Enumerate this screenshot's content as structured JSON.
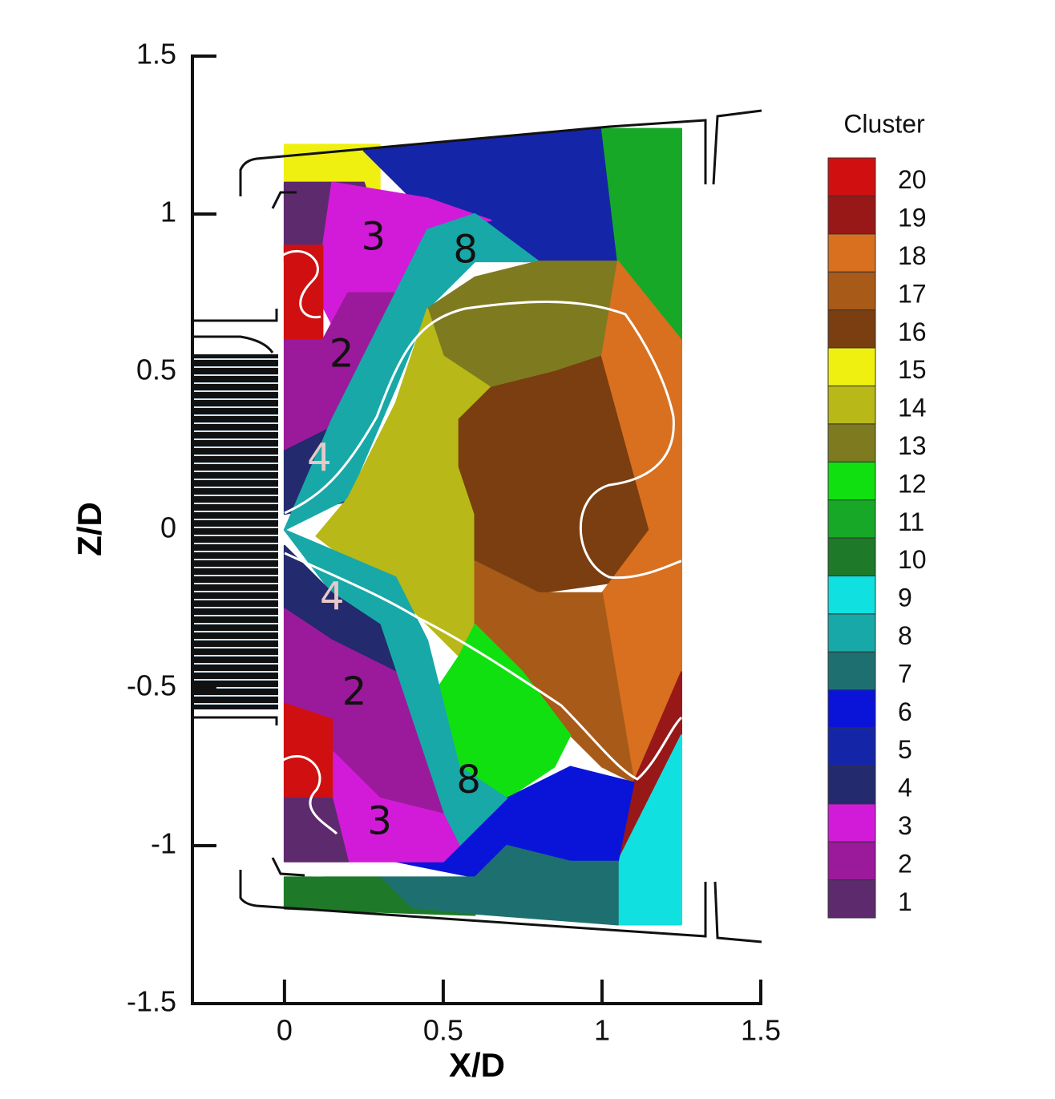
{
  "chart_data": {
    "type": "contour",
    "xlabel": "X/D",
    "ylabel": "Z/D",
    "xlim": [
      -0.29,
      1.5
    ],
    "ylim": [
      -1.5,
      1.5
    ],
    "xticks": [
      0,
      0.5,
      1,
      1.5
    ],
    "yticks": [
      -1.5,
      -1,
      -0.5,
      0,
      0.5,
      1,
      1.5
    ],
    "legend_title": "Cluster",
    "levels": [
      1,
      2,
      3,
      4,
      5,
      6,
      7,
      8,
      9,
      10,
      11,
      12,
      13,
      14,
      15,
      16,
      17,
      18,
      19,
      20
    ],
    "colors": [
      "#5e2a6e",
      "#9b1a9b",
      "#d21bd8",
      "#232a6e",
      "#1525a8",
      "#0a14d8",
      "#1e7070",
      "#18a8a8",
      "#10e0e0",
      "#1e7a28",
      "#18a828",
      "#10e010",
      "#7e7a20",
      "#b8b818",
      "#f0f010",
      "#7a3e10",
      "#a85a18",
      "#d87020",
      "#981818",
      "#d01010"
    ],
    "regions": [
      {
        "cluster": 15,
        "x": [
          0,
          0.3,
          0.3,
          0
        ],
        "y": [
          1.22,
          1.22,
          1.05,
          1.05
        ]
      },
      {
        "cluster": 5,
        "x": [
          0.25,
          1.0,
          1.05,
          0.75,
          0.6,
          0.4
        ],
        "y": [
          1.2,
          1.27,
          0.85,
          0.85,
          1.0,
          1.05
        ]
      },
      {
        "cluster": 11,
        "x": [
          1.0,
          1.25,
          1.25,
          1.1,
          1.05
        ],
        "y": [
          1.27,
          1.27,
          0.6,
          0.7,
          0.85
        ]
      },
      {
        "cluster": 1,
        "x": [
          0,
          0.25,
          0.3,
          0.15,
          0
        ],
        "y": [
          1.1,
          1.1,
          0.95,
          0.85,
          0.85
        ]
      },
      {
        "cluster": 3,
        "x": [
          0.15,
          0.45,
          0.65,
          0.45,
          0.35,
          0.2,
          0.1
        ],
        "y": [
          1.1,
          1.05,
          0.98,
          0.95,
          0.75,
          0.55,
          0.75
        ]
      },
      {
        "cluster": 20,
        "x": [
          0,
          0.12,
          0.12,
          0
        ],
        "y": [
          0.9,
          0.9,
          0.6,
          0.6
        ]
      },
      {
        "cluster": 2,
        "x": [
          0,
          0.12,
          0.2,
          0.35,
          0.25,
          0.15,
          0
        ],
        "y": [
          0.6,
          0.6,
          0.75,
          0.75,
          0.4,
          0.3,
          0.25
        ]
      },
      {
        "cluster": 4,
        "x": [
          0,
          0.2,
          0.25,
          0
        ],
        "y": [
          0.25,
          0.35,
          0.1,
          0.05
        ]
      },
      {
        "cluster": 8,
        "x": [
          0.35,
          0.45,
          0.6,
          0.8,
          0.6,
          0.45,
          0.35,
          0.2,
          0,
          0.15
        ],
        "y": [
          0.75,
          0.95,
          1.0,
          0.85,
          0.85,
          0.7,
          0.45,
          0.1,
          0,
          0.35
        ]
      },
      {
        "cluster": 13,
        "x": [
          0.45,
          0.6,
          0.8,
          1.05,
          1.0,
          0.85,
          0.6,
          0.5
        ],
        "y": [
          0.7,
          0.8,
          0.85,
          0.85,
          0.5,
          0.35,
          0.4,
          0.55
        ]
      },
      {
        "cluster": 14,
        "x": [
          0.45,
          0.5,
          0.65,
          0.55,
          0.55,
          0.6,
          0.6,
          0.55,
          0.4,
          0.1,
          0.2,
          0.35
        ],
        "y": [
          0.7,
          0.55,
          0.45,
          0.35,
          0.2,
          0.05,
          -0.3,
          -0.4,
          -0.25,
          -0.02,
          0.1,
          0.4
        ]
      },
      {
        "cluster": 16,
        "x": [
          0.55,
          0.65,
          0.85,
          1.0,
          1.15,
          1.15,
          0.8,
          0.6,
          0.6,
          0.55
        ],
        "y": [
          0.35,
          0.45,
          0.5,
          0.55,
          0,
          -0.15,
          -0.2,
          -0.1,
          0.05,
          0.2
        ]
      },
      {
        "cluster": 18,
        "x": [
          1.05,
          1.25,
          1.25,
          1.1,
          1.0,
          1.15,
          1.0
        ],
        "y": [
          0.85,
          0.6,
          -0.5,
          -0.8,
          -0.2,
          0,
          0.55
        ]
      },
      {
        "cluster": 17,
        "x": [
          0.6,
          0.8,
          1.0,
          1.1,
          1.0,
          0.85,
          0.75,
          0.6
        ],
        "y": [
          -0.1,
          -0.2,
          -0.2,
          -0.8,
          -0.75,
          -0.6,
          -0.45,
          -0.3
        ]
      },
      {
        "cluster": 12,
        "x": [
          0.55,
          0.6,
          0.75,
          0.9,
          0.85,
          0.7,
          0.55,
          0.45
        ],
        "y": [
          -0.4,
          -0.3,
          -0.45,
          -0.65,
          -0.75,
          -0.85,
          -0.75,
          -0.55
        ]
      },
      {
        "cluster": 19,
        "x": [
          1.25,
          1.25,
          1.1,
          1.05,
          1.1
        ],
        "y": [
          -0.45,
          -0.65,
          -0.95,
          -1.05,
          -0.8
        ]
      },
      {
        "cluster": 9,
        "x": [
          1.1,
          1.25,
          1.25,
          1.05,
          1.05
        ],
        "y": [
          -0.95,
          -0.65,
          -1.25,
          -1.25,
          -1.05
        ]
      },
      {
        "cluster": 6,
        "x": [
          0.55,
          0.7,
          0.9,
          1.1,
          1.05,
          0.9,
          0.7,
          0.6,
          0.35
        ],
        "y": [
          -1.0,
          -0.85,
          -0.75,
          -0.8,
          -1.05,
          -1.05,
          -1.0,
          -1.1,
          -1.05
        ]
      },
      {
        "cluster": 7,
        "x": [
          0.3,
          0.6,
          0.7,
          0.9,
          1.05,
          1.05,
          0.4
        ],
        "y": [
          -1.1,
          -1.1,
          -1.0,
          -1.05,
          -1.05,
          -1.25,
          -1.2
        ]
      },
      {
        "cluster": 10,
        "x": [
          0,
          0.3,
          0.4,
          0.6,
          0
        ],
        "y": [
          -1.1,
          -1.1,
          -1.2,
          -1.22,
          -1.2
        ]
      },
      {
        "cluster": 8,
        "x": [
          0,
          0.35,
          0.45,
          0.55,
          0.7,
          0.55,
          0.5,
          0.4,
          0.3,
          0.15
        ],
        "y": [
          0,
          -0.15,
          -0.35,
          -0.75,
          -0.85,
          -1.0,
          -0.9,
          -0.6,
          -0.3,
          -0.2
        ]
      },
      {
        "cluster": 4,
        "x": [
          0,
          0.15,
          0.3,
          0.35,
          0.15,
          0
        ],
        "y": [
          -0.05,
          -0.2,
          -0.3,
          -0.45,
          -0.35,
          -0.25
        ]
      },
      {
        "cluster": 2,
        "x": [
          0,
          0.15,
          0.35,
          0.4,
          0.5,
          0.3,
          0.15,
          0
        ],
        "y": [
          -0.25,
          -0.35,
          -0.45,
          -0.6,
          -0.9,
          -0.85,
          -0.7,
          -0.55
        ]
      },
      {
        "cluster": 3,
        "x": [
          0.15,
          0.3,
          0.5,
          0.55,
          0.5,
          0.2,
          0.15
        ],
        "y": [
          -0.7,
          -0.85,
          -0.9,
          -1.0,
          -1.05,
          -1.05,
          -0.95
        ]
      },
      {
        "cluster": 20,
        "x": [
          0,
          0.15,
          0.15,
          0
        ],
        "y": [
          -0.55,
          -0.6,
          -0.85,
          -0.85
        ]
      },
      {
        "cluster": 1,
        "x": [
          0,
          0.15,
          0.2,
          0
        ],
        "y": [
          -0.85,
          -0.85,
          -1.05,
          -1.05
        ]
      }
    ],
    "annotations": [
      {
        "text": "3",
        "x": 0.28,
        "y": 0.92,
        "color": "#111111"
      },
      {
        "text": "8",
        "x": 0.57,
        "y": 0.88,
        "color": "#111111"
      },
      {
        "text": "2",
        "x": 0.18,
        "y": 0.55,
        "color": "#111111"
      },
      {
        "text": "4",
        "x": 0.11,
        "y": 0.22,
        "color": "#e8c8c8"
      },
      {
        "text": "4",
        "x": 0.15,
        "y": -0.22,
        "color": "#e8c8c8"
      },
      {
        "text": "2",
        "x": 0.22,
        "y": -0.52,
        "color": "#111111"
      },
      {
        "text": "8",
        "x": 0.58,
        "y": -0.8,
        "color": "#111111"
      },
      {
        "text": "3",
        "x": 0.3,
        "y": -0.93,
        "color": "#111111"
      }
    ]
  }
}
